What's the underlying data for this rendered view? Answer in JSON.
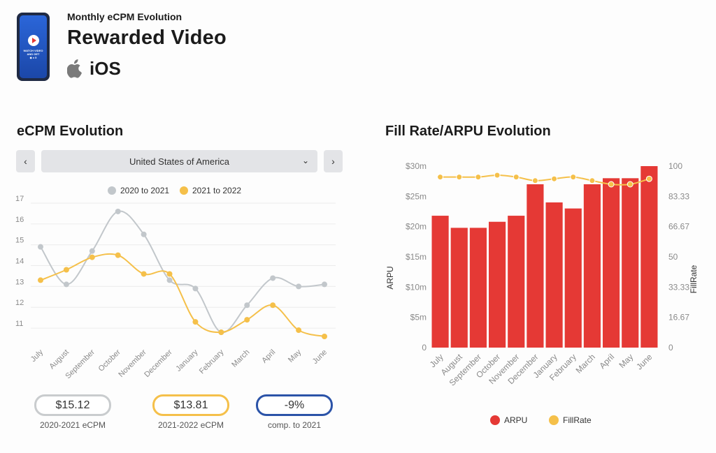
{
  "header": {
    "subtitle": "Monthly eCPM Evolution",
    "title": "Rewarded Video",
    "platform_label": "iOS",
    "phone_caption_line1": "WATCH VIDEO",
    "phone_caption_line2": "AND GET",
    "phone_reward": "◆ x 5"
  },
  "ecpm_section": {
    "title": "eCPM Evolution",
    "country": "United States of America",
    "prev_icon": "chevron-left-icon",
    "next_icon": "chevron-right-icon"
  },
  "fill_section": {
    "title": "Fill Rate/ARPU Evolution"
  },
  "kpis": [
    {
      "value": "$15.12",
      "label": "2020-2021 eCPM",
      "color": "#c9ccce"
    },
    {
      "value": "$13.81",
      "label": "2021-2022 eCPM",
      "color": "#f5c04a"
    },
    {
      "value": "-9%",
      "label": "comp. to 2021",
      "color": "#2b53a8"
    }
  ],
  "chart_data": [
    {
      "type": "line",
      "title": "",
      "categories": [
        "July",
        "August",
        "September",
        "October",
        "November",
        "December",
        "January",
        "February",
        "March",
        "April",
        "May",
        "June"
      ],
      "ylim": [
        10.5,
        17
      ],
      "yticks": [
        11,
        12,
        13,
        14,
        15,
        16,
        17
      ],
      "grid": true,
      "legend": "top",
      "series": [
        {
          "name": "2020 to 2021",
          "color": "#c2c7cb",
          "values": [
            14.9,
            13.1,
            14.7,
            16.6,
            15.5,
            13.3,
            12.9,
            10.8,
            12.1,
            13.4,
            13.0,
            13.1
          ]
        },
        {
          "name": "2021 to 2022",
          "color": "#f5c04a",
          "values": [
            13.3,
            13.8,
            14.4,
            14.5,
            13.6,
            13.6,
            11.3,
            10.8,
            11.4,
            12.1,
            10.9,
            10.6
          ]
        }
      ]
    },
    {
      "type": "bar",
      "title": "",
      "categories": [
        "July",
        "August",
        "September",
        "October",
        "November",
        "December",
        "January",
        "February",
        "March",
        "April",
        "May",
        "June"
      ],
      "ylabel": "ARPU",
      "y2label": "FillRate",
      "ylim": [
        0,
        30000000
      ],
      "yticks": [
        "0",
        "$5m",
        "$10m",
        "$15m",
        "$20m",
        "$25m",
        "$30m"
      ],
      "y2lim": [
        0,
        100
      ],
      "y2ticks": [
        "0",
        "16.67",
        "33.33",
        "50",
        "66.67",
        "83.33",
        "100"
      ],
      "legend": "bottom",
      "series": [
        {
          "name": "ARPU",
          "type": "bar",
          "color": "#e53935",
          "values": [
            21800000,
            19800000,
            19800000,
            20800000,
            21800000,
            27000000,
            24000000,
            23000000,
            27000000,
            28000000,
            28000000,
            30000000
          ]
        },
        {
          "name": "FillRate",
          "type": "line",
          "axis": "right",
          "color": "#f5c04a",
          "values": [
            94,
            94,
            94,
            95,
            94,
            92,
            93,
            94,
            92,
            90,
            90,
            93
          ]
        }
      ]
    }
  ]
}
